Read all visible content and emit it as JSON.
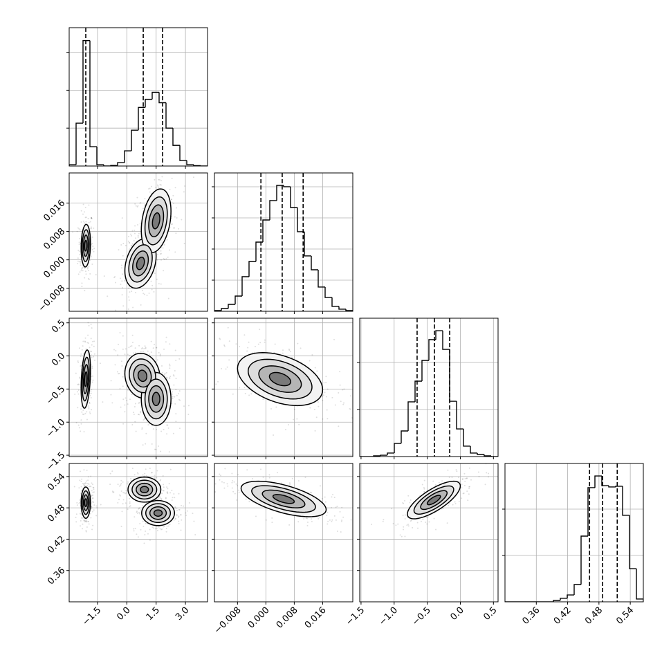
{
  "chart_data": {
    "type": "corner",
    "grid": true,
    "contour_levels_sigma": [
      0.5,
      1,
      1.5,
      2
    ],
    "parameters": [
      {
        "lim": [
          -2.95,
          4.13
        ],
        "ticks": [
          {
            "value": -1.5,
            "label": "−1.5"
          },
          {
            "value": 0,
            "label": "0.0"
          },
          {
            "value": 1.5,
            "label": "1.5"
          },
          {
            "value": 3,
            "label": "3.0"
          }
        ]
      },
      {
        "lim": [
          -0.0145,
          0.0245
        ],
        "ticks": [
          {
            "value": -0.008,
            "label": "−0.008"
          },
          {
            "value": 0,
            "label": "0.000"
          },
          {
            "value": 0.008,
            "label": "0.008"
          },
          {
            "value": 0.016,
            "label": "0.016"
          }
        ]
      },
      {
        "lim": [
          -1.52,
          0.57
        ],
        "ticks": [
          {
            "value": -1.5,
            "label": "−1.5"
          },
          {
            "value": -1,
            "label": "−1.0"
          },
          {
            "value": -0.5,
            "label": "−0.5"
          },
          {
            "value": 0,
            "label": "0.0"
          },
          {
            "value": 0.5,
            "label": "0.5"
          }
        ]
      },
      {
        "lim": [
          0.3,
          0.565
        ],
        "ticks": [
          0.36,
          0.42,
          0.48,
          0.54
        ]
      }
    ],
    "histograms": [
      {
        "bins": [
          -2.95,
          -2.596,
          -2.242,
          -1.888,
          -1.534,
          -1.18,
          -0.826,
          -0.472,
          -0.118,
          0.236,
          0.59,
          0.944,
          1.298,
          1.652,
          2.006,
          2.36,
          2.714,
          3.068,
          3.422,
          3.776,
          4.13
        ],
        "counts": [
          35,
          1130,
          3310,
          510,
          35,
          0,
          15,
          90,
          400,
          945,
          1545,
          1760,
          1945,
          1670,
          1000,
          545,
          145,
          35,
          10,
          0
        ],
        "ylim": [
          0,
          3650
        ],
        "yticks": [
          1000,
          2000,
          3000
        ],
        "quantiles": [
          -2.1,
          0.84,
          1.83
        ]
      },
      {
        "bins": [
          -0.0145,
          -0.01255,
          -0.0106,
          -0.00865,
          -0.0067,
          -0.00475,
          -0.0028,
          -0.00085,
          0.0011,
          0.00305,
          0.005,
          0.00695,
          0.0089,
          0.01085,
          0.0128,
          0.01475,
          0.0167,
          0.01865,
          0.0206,
          0.02255,
          0.0245
        ],
        "counts": [
          22,
          89,
          222,
          489,
          1111,
          1600,
          2222,
          2933,
          3556,
          4044,
          4000,
          3333,
          2556,
          1778,
          1333,
          778,
          444,
          156,
          67,
          22
        ],
        "ylim": [
          0,
          4444
        ],
        "yticks": [
          1000,
          2000,
          3000,
          4000
        ],
        "quantiles": [
          -0.0014,
          0.0046,
          0.0105
        ]
      },
      {
        "bins": [
          -1.52,
          -1.4155,
          -1.311,
          -1.2065,
          -1.102,
          -0.9975,
          -0.893,
          -0.7885,
          -0.684,
          -0.5795,
          -0.475,
          -0.3705,
          -0.266,
          -0.1615,
          -0.057,
          0.0475,
          0.152,
          0.2565,
          0.361,
          0.4655,
          0.57
        ],
        "counts": [
          0,
          0,
          15,
          29,
          74,
          279,
          544,
          1162,
          1603,
          2044,
          2485,
          2676,
          2279,
          1176,
          588,
          221,
          74,
          44,
          15,
          0
        ],
        "ylim": [
          0,
          2941
        ],
        "yticks": [
          1000,
          2000
        ],
        "quantiles": [
          -0.653,
          -0.391,
          -0.161
        ]
      },
      {
        "bins": [
          0.3,
          0.31325,
          0.3265,
          0.33975,
          0.353,
          0.36625,
          0.3795,
          0.39275,
          0.406,
          0.41925,
          0.4325,
          0.44575,
          0.459,
          0.47225,
          0.4855,
          0.49875,
          0.512,
          0.52525,
          0.5385,
          0.55175,
          0.565
        ],
        "counts": [
          0,
          0,
          0,
          0,
          0,
          0,
          0,
          30,
          75,
          149,
          373,
          1418,
          2463,
          2716,
          2507,
          2478,
          2493,
          1866,
          716,
          60
        ],
        "ylim": [
          0,
          2985
        ],
        "yticks": [
          1000,
          2000
        ],
        "quantiles": [
          0.462,
          0.487,
          0.515
        ]
      }
    ],
    "panels": [
      {
        "x": 0,
        "y": 1,
        "clusters": [
          {
            "center": [
              -2.1,
              0.004
            ],
            "sd": [
              0.12,
              0.003
            ],
            "rho": 0.1
          },
          {
            "center": [
              0.7,
              -0.001
            ],
            "sd": [
              0.4,
              0.0035
            ],
            "rho": 0.3
          },
          {
            "center": [
              1.5,
              0.011
            ],
            "sd": [
              0.38,
              0.0045
            ],
            "rho": 0.3
          }
        ]
      },
      {
        "x": 0,
        "y": 2,
        "clusters": [
          {
            "center": [
              -2.1,
              -0.35
            ],
            "sd": [
              0.12,
              0.22
            ],
            "rho": 0.3
          },
          {
            "center": [
              0.8,
              -0.3
            ],
            "sd": [
              0.45,
              0.17
            ],
            "rho": -0.1
          },
          {
            "center": [
              1.5,
              -0.65
            ],
            "sd": [
              0.38,
              0.2
            ],
            "rho": 0
          }
        ]
      },
      {
        "x": 0,
        "y": 3,
        "clusters": [
          {
            "center": [
              -2.1,
              0.49
            ],
            "sd": [
              0.12,
              0.015
            ],
            "rho": 0
          },
          {
            "center": [
              0.9,
              0.515
            ],
            "sd": [
              0.42,
              0.012
            ],
            "rho": 0
          },
          {
            "center": [
              1.6,
              0.47
            ],
            "sd": [
              0.42,
              0.012
            ],
            "rho": 0
          }
        ]
      },
      {
        "x": 1,
        "y": 2,
        "clusters": [
          {
            "center": [
              0.004,
              -0.35
            ],
            "sd": [
              0.006,
              0.2
            ],
            "rho": -0.4
          }
        ]
      },
      {
        "x": 1,
        "y": 3,
        "clusters": [
          {
            "center": [
              0.005,
              0.497
            ],
            "sd": [
              0.006,
              0.017
            ],
            "rho": -0.6
          }
        ]
      },
      {
        "x": 2,
        "y": 3,
        "clusters": [
          {
            "center": [
              -0.4,
              0.495
            ],
            "sd": [
              0.2,
              0.018
            ],
            "rho": 0.75
          }
        ]
      }
    ]
  }
}
